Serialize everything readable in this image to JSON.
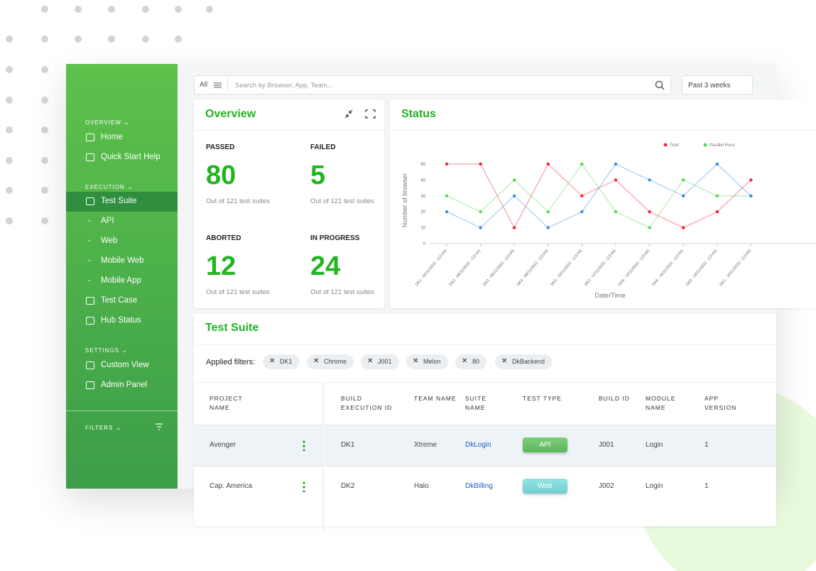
{
  "search": {
    "scope": "All",
    "placeholder": "Search  by Browser, App, Team...",
    "range": "Past 3 weeks"
  },
  "sidebar": {
    "sections": [
      {
        "title": "OVERVIEW",
        "items": [
          "Home",
          "Quick Start Help"
        ]
      },
      {
        "title": "EXECUTION",
        "items": [
          "Test Suite",
          "API",
          "Web",
          "Mobile Web",
          "Mobile App",
          "Test Case",
          "Hub Status"
        ]
      },
      {
        "title": "SETTINGS",
        "items": [
          "Custom View",
          "Admin Panel"
        ]
      }
    ],
    "filters": "FILTERS"
  },
  "overview": {
    "title": "Overview",
    "stats": [
      {
        "label": "PASSED",
        "value": "80",
        "note": "Out of 121 test suites"
      },
      {
        "label": "FAILED",
        "value": "5",
        "note": "Out of 121 test suites"
      },
      {
        "label": "ABORTED",
        "value": "12",
        "note": "Out of 121 test suites"
      },
      {
        "label": "IN PROGRESS",
        "value": "24",
        "note": "Out of 121 test suites"
      }
    ]
  },
  "chart_data": {
    "type": "line",
    "title": "Status",
    "x_label": "Date/Time",
    "y_label": "Number of browser",
    "categories": [
      "DK1 - 02/11/2022 - (13:44)",
      "DK2 - 04/11/2022 - (13:44)",
      "DK3 - 06/11/2022 - (13:44)",
      "DK4 - 08/11/2022 - (13:44)",
      "DK5 - 10/11/2022 - (13:44)",
      "DK2 - 12/11/2022 - (13:44)",
      "DK6 - 14/11/2022 - (13:44)",
      "DK8 - 16/11/2022 - (13:44)",
      "DK9 - 18/11/2022 - (13:44)",
      "DK1 - 20/11/2022 - (13:44)"
    ],
    "series": [
      {
        "name": "Total",
        "color": "#f0243b",
        "values": [
          50,
          50,
          10,
          50,
          30,
          40,
          20,
          10,
          20,
          40
        ]
      },
      {
        "name": "Parallel Runs",
        "color": "#4fdc4f",
        "values": [
          30,
          20,
          40,
          20,
          50,
          20,
          10,
          40,
          30,
          30
        ]
      },
      {
        "color": "#3a8ee6",
        "values": [
          20,
          10,
          30,
          10,
          20,
          50,
          40,
          30,
          50,
          30
        ]
      }
    ],
    "ylim": [
      0,
      50
    ],
    "yticks": [
      0,
      10,
      20,
      30,
      40,
      50
    ],
    "grid": false,
    "legend": "top-right"
  },
  "test_suite": {
    "title": "Test Suite",
    "filters_label": "Applied filters:",
    "filters": [
      "DK1",
      "Chrome",
      "J001",
      "Melon",
      "80",
      "DkBackend"
    ],
    "columns": [
      "PROJECT NAME",
      "BUILD EXECUTION ID",
      "TEAM NAME",
      "SUITE NAME",
      "TEST TYPE",
      "BUILD ID",
      "MODULE NAME",
      "APP VERSION"
    ],
    "rows": [
      [
        "Avenger",
        "DK1",
        "Xtreme",
        "DkLogin",
        "API",
        "J001",
        "Login",
        "1"
      ],
      [
        "Cap. America",
        "DK2",
        "Halo",
        "DkBilling",
        "Web",
        "J002",
        "Login",
        "1"
      ]
    ]
  }
}
